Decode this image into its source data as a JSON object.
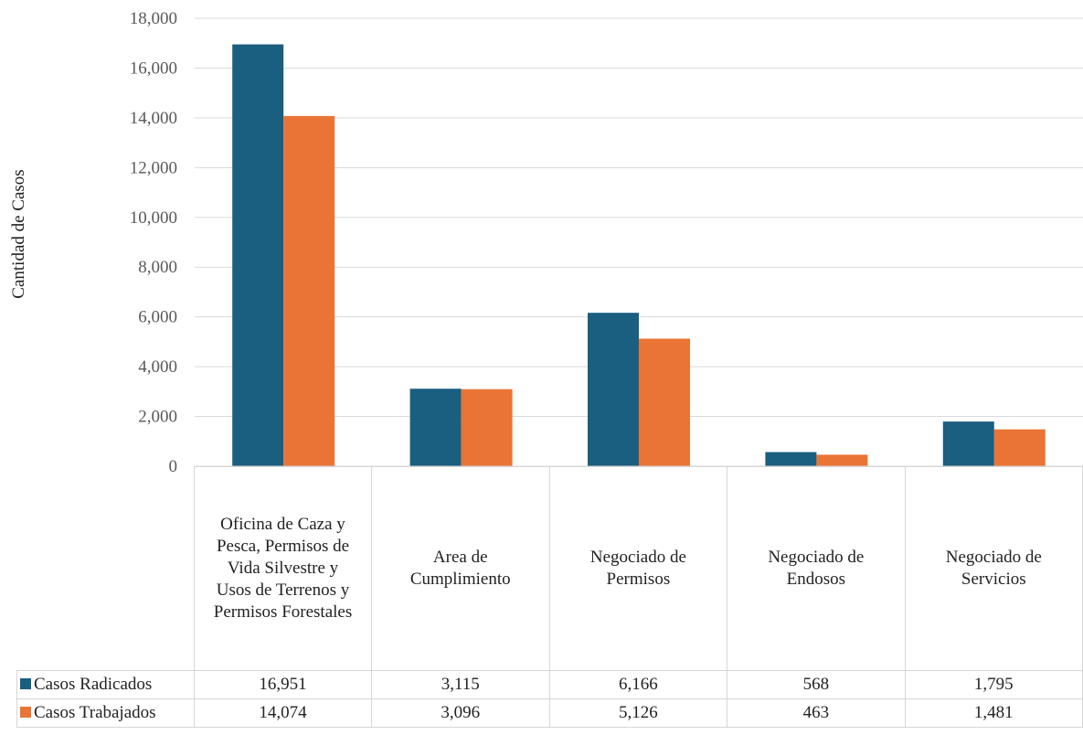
{
  "chart_data": {
    "type": "bar",
    "ylabel": "Cantidad de Casos",
    "ylim": [
      0,
      18000
    ],
    "yticks": [
      0,
      2000,
      4000,
      6000,
      8000,
      10000,
      12000,
      14000,
      16000,
      18000
    ],
    "ytick_labels": [
      "0",
      "2,000",
      "4,000",
      "6,000",
      "8,000",
      "10,000",
      "12,000",
      "14,000",
      "16,000",
      "18,000"
    ],
    "grid": true,
    "legend": "data-table",
    "categories": [
      "Oficina de Caza y Pesca, Permisos de Vida Silvestre y Usos de Terrenos y Permisos Forestales",
      "Area de Cumplimiento",
      "Negociado de Permisos",
      "Negociado de Endosos",
      "Negociado de Servicios"
    ],
    "series": [
      {
        "name": "Casos Radicados",
        "color": "#1a5e80",
        "values": [
          16951,
          3115,
          6166,
          568,
          1795
        ],
        "labels": [
          "16,951",
          "3,115",
          "6,166",
          "568",
          "1,795"
        ]
      },
      {
        "name": "Casos Trabajados",
        "color": "#ea7435",
        "values": [
          14074,
          3096,
          5126,
          463,
          1481
        ],
        "labels": [
          "14,074",
          "3,096",
          "5,126",
          "463",
          "1,481"
        ]
      }
    ]
  }
}
